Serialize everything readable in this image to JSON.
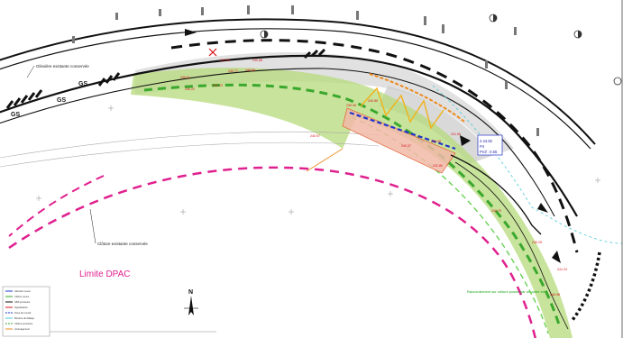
{
  "labels": {
    "existing_barrier_top": "Glissière existante conservée",
    "existing_fence": "Clôture existante conservée",
    "dpac_limit": "Limite DPAC",
    "gs_markers": [
      "GS",
      "GS",
      "GS"
    ],
    "north": "N",
    "green_note": "Raccordement sur clôture posée par un autre lot",
    "survey_box_lines": [
      "2.44.82",
      "P4",
      "Prof : 0.55"
    ]
  },
  "elevations": [
    "240.55",
    "240.88",
    "240.77",
    "240.61",
    "240.56",
    "240.13",
    "240.22",
    "240.45",
    "240.85",
    "240.37",
    "240.48",
    "241.96",
    "241.80",
    "240.97",
    "240.79",
    "240.25",
    "241.24",
    "240.98"
  ],
  "legend": {
    "items": [
      "Glissière neuve",
      "Clôture neuve",
      "GBA provisoire",
      "Signalisation",
      "Noue de recueil",
      "Bordure de dallage",
      "Clôture provisoire",
      "Aménagement"
    ]
  },
  "colors": {
    "dpac": "#e0208e",
    "green_band": "#b6d97a",
    "green_dash": "#3aa82e",
    "blue_dash": "#2233cc",
    "orange": "#ec8a1d",
    "cyan": "#49c7d8",
    "red_text": "#d8141a",
    "grey_road": "#d9d9d9"
  }
}
